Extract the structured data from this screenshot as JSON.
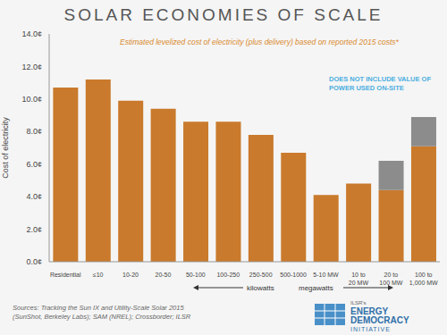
{
  "chart_data": {
    "type": "bar",
    "title": "SOLAR ECONOMIES OF SCALE",
    "subtitle": "Estimated levelized cost of electricity (plus delivery) based on reported 2015 costs*",
    "y_label": "Cost of electricity",
    "annotations": [
      "DOES NOT INCLUDE VALUE OF POWER USED ON-SITE",
      "kilowatts",
      "megawatts"
    ],
    "source": [
      "Sources: Tracking the Sun IX and Utility-Scale Solar 2015",
      "(SunShot, Berkeley Labs); SAM (NREL); Crossborder; ILSR"
    ],
    "logo": [
      "ILSR's",
      "ENERGY",
      "DEMOCRACY",
      "INITIATIVE"
    ],
    "categories": [
      "Residential",
      "≤10",
      "10-20",
      "20-50",
      "50-100",
      "100-250",
      "250-500",
      "500-1000",
      "5-10 MW",
      "10 to 20 MW",
      "20 to 100 MW",
      "100 to 1,000 MW"
    ],
    "series": [
      {
        "color": "#c97a2c",
        "values": [
          10.7,
          11.2,
          9.9,
          9.4,
          8.6,
          8.6,
          7.8,
          6.7,
          4.1,
          4.8,
          4.4,
          7.1
        ]
      },
      {
        "color": "#8c8c8c",
        "values": [
          null,
          null,
          null,
          null,
          null,
          null,
          null,
          null,
          null,
          null,
          1.8,
          1.8
        ]
      }
    ],
    "stacked": true,
    "grid": false,
    "ylim": [
      0,
      14
    ],
    "yticks": [
      {
        "value": 0,
        "label": "0.0¢"
      },
      {
        "value": 2,
        "label": "2.0¢"
      },
      {
        "value": 4,
        "label": "4.0¢"
      },
      {
        "value": 6,
        "label": "6.0¢"
      },
      {
        "value": 8,
        "label": "8.0¢"
      },
      {
        "value": 10,
        "label": "10.0¢"
      },
      {
        "value": 12,
        "label": "12.0¢"
      },
      {
        "value": 14,
        "label": "14.0¢"
      }
    ]
  }
}
